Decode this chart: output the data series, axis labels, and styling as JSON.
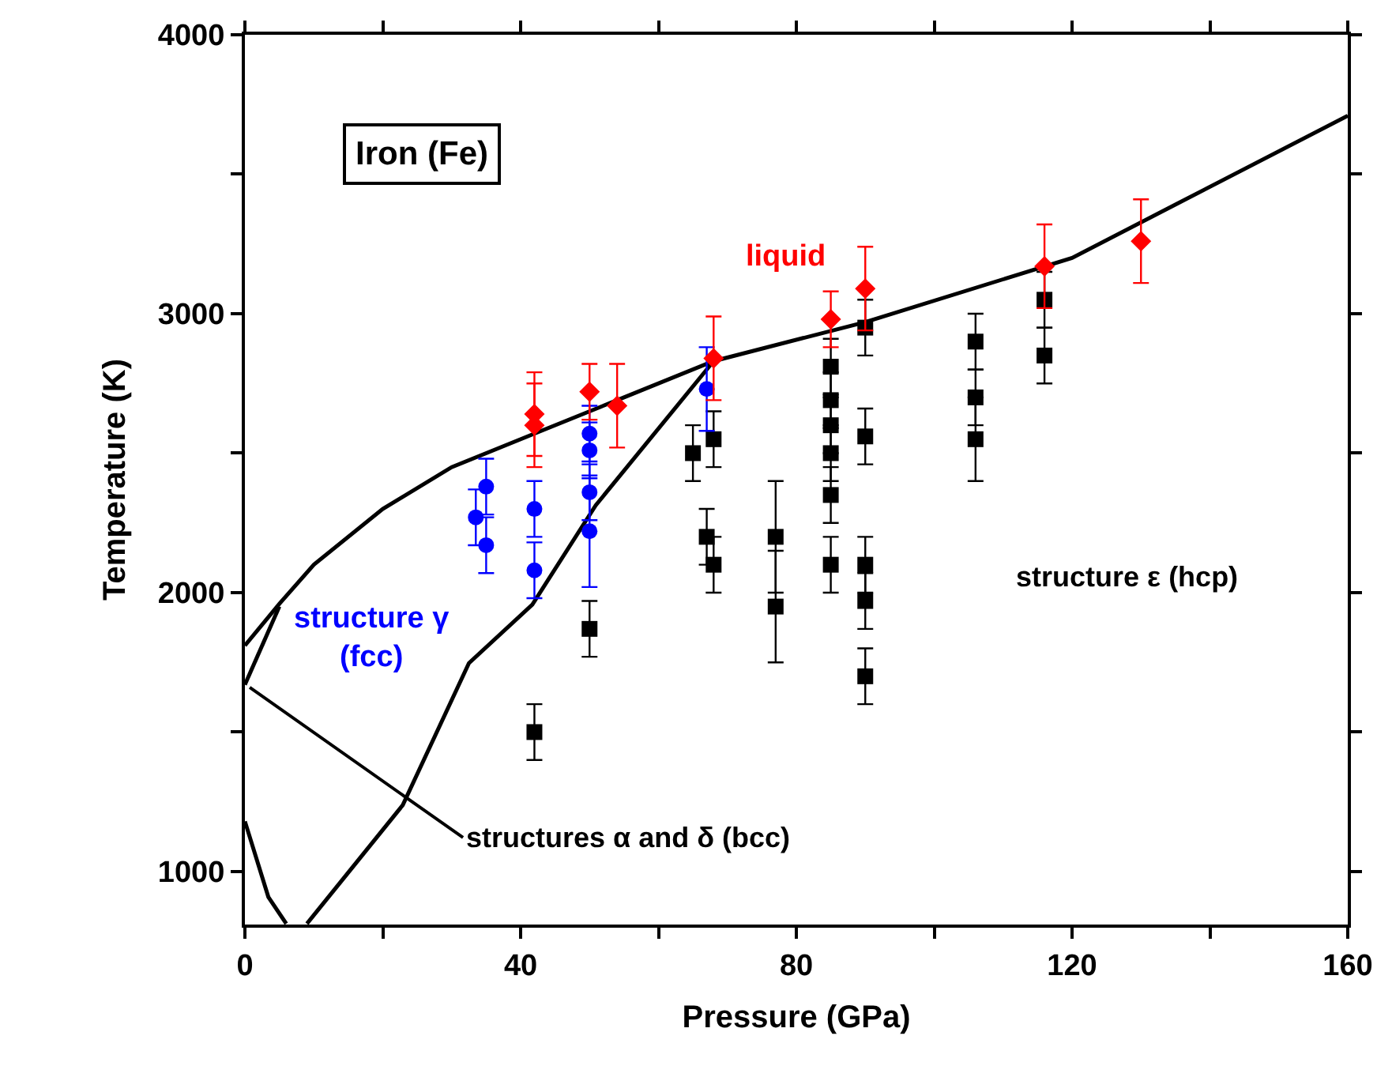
{
  "chart_data": {
    "type": "scatter",
    "xlabel": "Pressure (GPa)",
    "ylabel": "Temperature (K)",
    "xlim": [
      0,
      160
    ],
    "ylim": [
      810,
      4000
    ],
    "xticks": [
      0,
      {
        "value": 20,
        "label": null
      },
      40,
      {
        "value": 60,
        "label": null
      },
      80,
      {
        "value": 100,
        "label": null
      },
      120,
      {
        "value": 140,
        "label": null
      },
      160
    ],
    "yticks": [
      {
        "value": 1000,
        "label": "1000"
      },
      {
        "value": 1500,
        "label": null
      },
      2000,
      {
        "value": 2500,
        "label": null
      },
      3000,
      {
        "value": 3500,
        "label": null
      },
      4000
    ],
    "annotations": [
      "Iron (Fe)",
      "liquid",
      "structure γ\n(fcc)",
      "structure ε (hcp)",
      {
        "text": "structures α and δ (bcc)",
        "x": 0.7,
        "y": 1660
      }
    ],
    "series": [
      {
        "type": "line",
        "color": "#000000",
        "marker": "none",
        "x": [
          0,
          5,
          10,
          20,
          30,
          42,
          55,
          68,
          90,
          120,
          160
        ],
        "values": [
          1810,
          1960,
          2100,
          2300,
          2450,
          2570,
          2700,
          2830,
          2970,
          3200,
          3710
        ]
      },
      {
        "type": "line",
        "color": "#000000",
        "marker": "none",
        "x": [
          9,
          22.9,
          32.5,
          41.7,
          50.9,
          68
        ],
        "values": [
          813,
          1238,
          1747,
          1957,
          2313,
          2830
        ]
      },
      {
        "type": "line",
        "color": "#000000",
        "marker": "none",
        "x": [
          0,
          3.4,
          6
        ],
        "values": [
          1180,
          909,
          813
        ]
      },
      {
        "type": "line",
        "color": "#000000",
        "marker": "none",
        "x": [
          0,
          5
        ],
        "values": [
          1670,
          1950
        ]
      },
      {
        "color": "#000000",
        "marker": "square",
        "x": [
          42,
          50,
          65,
          68,
          67,
          68,
          77,
          77,
          85,
          85,
          85,
          85,
          85,
          85,
          90,
          90,
          90,
          90,
          90,
          106,
          106,
          106,
          116,
          116
        ],
        "values": [
          1500,
          1870,
          2500,
          2550,
          2200,
          2100,
          2200,
          1950,
          2810,
          2690,
          2600,
          2500,
          2350,
          2100,
          2950,
          2560,
          2100,
          1970,
          1700,
          2900,
          2700,
          2550,
          3050,
          2850
        ],
        "errors": [
          100,
          100,
          100,
          100,
          100,
          100,
          200,
          200,
          100,
          100,
          100,
          100,
          100,
          100,
          100,
          100,
          100,
          100,
          100,
          100,
          100,
          150,
          100,
          100
        ]
      },
      {
        "color": "#0000ff",
        "marker": "circle",
        "x": [
          35,
          33.5,
          35,
          42,
          42,
          50,
          50,
          50,
          50,
          67
        ],
        "values": [
          2380,
          2270,
          2170,
          2300,
          2080,
          2570,
          2510,
          2360,
          2220,
          2730
        ],
        "errors": [
          100,
          100,
          100,
          100,
          100,
          100,
          100,
          100,
          200,
          150
        ]
      },
      {
        "color": "#ff0000",
        "marker": "diamond",
        "x": [
          42,
          42,
          50,
          54,
          68,
          85,
          90,
          116,
          130
        ],
        "values": [
          2640,
          2600,
          2720,
          2670,
          2840,
          2980,
          3090,
          3170,
          3260
        ],
        "errors": [
          150,
          150,
          100,
          150,
          150,
          100,
          150,
          150,
          150
        ]
      }
    ]
  }
}
